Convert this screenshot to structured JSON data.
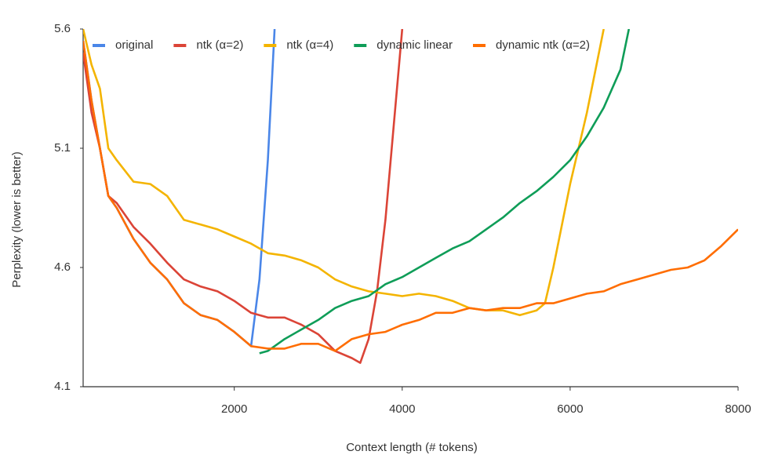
{
  "chart_data": {
    "type": "line",
    "x_label": "Context length (# tokens)",
    "y_label": "Perplexity (lower is better)",
    "xlim": [
      200,
      8000
    ],
    "ylim": [
      4.1,
      5.6
    ],
    "xticks": [
      2000,
      4000,
      6000,
      8000
    ],
    "yticks": [
      4.1,
      4.6,
      5.1,
      5.6
    ],
    "grid": false,
    "legend": "top",
    "series": [
      {
        "name": "original",
        "color": "#4a86e8",
        "x": [
          200,
          300,
          400,
          500,
          600,
          800,
          1000,
          1200,
          1400,
          1600,
          1800,
          2000,
          2200,
          2300,
          2400,
          2480
        ],
        "values": [
          5.55,
          5.3,
          5.1,
          4.9,
          4.85,
          4.72,
          4.62,
          4.55,
          4.45,
          4.4,
          4.38,
          4.33,
          4.27,
          4.55,
          5.05,
          5.6
        ]
      },
      {
        "name": "ntk (α=2)",
        "color": "#db4437",
        "x": [
          200,
          300,
          400,
          500,
          600,
          800,
          1000,
          1200,
          1400,
          1600,
          1800,
          2000,
          2200,
          2400,
          2600,
          2800,
          3000,
          3200,
          3400,
          3500,
          3600,
          3700,
          3800,
          3900,
          4000
        ],
        "values": [
          5.5,
          5.25,
          5.1,
          4.9,
          4.87,
          4.77,
          4.7,
          4.62,
          4.55,
          4.52,
          4.5,
          4.46,
          4.41,
          4.39,
          4.39,
          4.36,
          4.32,
          4.25,
          4.22,
          4.2,
          4.3,
          4.5,
          4.8,
          5.2,
          5.6
        ]
      },
      {
        "name": "ntk (α=4)",
        "color": "#f4b400",
        "x": [
          200,
          300,
          400,
          500,
          600,
          800,
          1000,
          1200,
          1400,
          1600,
          1800,
          2000,
          2200,
          2400,
          2600,
          2800,
          3000,
          3200,
          3400,
          3600,
          3800,
          4000,
          4200,
          4400,
          4600,
          4800,
          5000,
          5200,
          5400,
          5600,
          5700,
          5800,
          6000,
          6200,
          6400
        ],
        "values": [
          5.6,
          5.45,
          5.35,
          5.1,
          5.05,
          4.96,
          4.95,
          4.9,
          4.8,
          4.78,
          4.76,
          4.73,
          4.7,
          4.66,
          4.65,
          4.63,
          4.6,
          4.55,
          4.52,
          4.5,
          4.49,
          4.48,
          4.49,
          4.48,
          4.46,
          4.43,
          4.42,
          4.42,
          4.4,
          4.42,
          4.45,
          4.6,
          4.95,
          5.25,
          5.6
        ]
      },
      {
        "name": "dynamic linear",
        "color": "#0f9d58",
        "x": [
          2300,
          2400,
          2600,
          2800,
          3000,
          3200,
          3400,
          3600,
          3800,
          4000,
          4200,
          4400,
          4600,
          4800,
          5000,
          5200,
          5400,
          5600,
          5800,
          6000,
          6200,
          6400,
          6600,
          6700
        ],
        "values": [
          4.24,
          4.25,
          4.3,
          4.34,
          4.38,
          4.43,
          4.46,
          4.48,
          4.53,
          4.56,
          4.6,
          4.64,
          4.68,
          4.71,
          4.76,
          4.81,
          4.87,
          4.92,
          4.98,
          5.05,
          5.15,
          5.27,
          5.43,
          5.6
        ]
      },
      {
        "name": "dynamic ntk (α=2)",
        "color": "#ff6d01",
        "x": [
          200,
          300,
          400,
          500,
          600,
          800,
          1000,
          1200,
          1400,
          1600,
          1800,
          2000,
          2200,
          2400,
          2600,
          2800,
          3000,
          3200,
          3400,
          3600,
          3800,
          4000,
          4200,
          4400,
          4600,
          4800,
          5000,
          5200,
          5400,
          5600,
          5800,
          6000,
          6200,
          6400,
          6600,
          6800,
          7000,
          7200,
          7400,
          7600,
          7800,
          8000
        ],
        "values": [
          5.55,
          5.3,
          5.1,
          4.9,
          4.85,
          4.72,
          4.62,
          4.55,
          4.45,
          4.4,
          4.38,
          4.33,
          4.27,
          4.26,
          4.26,
          4.28,
          4.28,
          4.25,
          4.3,
          4.32,
          4.33,
          4.36,
          4.38,
          4.41,
          4.41,
          4.43,
          4.42,
          4.43,
          4.43,
          4.45,
          4.45,
          4.47,
          4.49,
          4.5,
          4.53,
          4.55,
          4.57,
          4.59,
          4.6,
          4.63,
          4.69,
          4.76
        ]
      }
    ]
  }
}
